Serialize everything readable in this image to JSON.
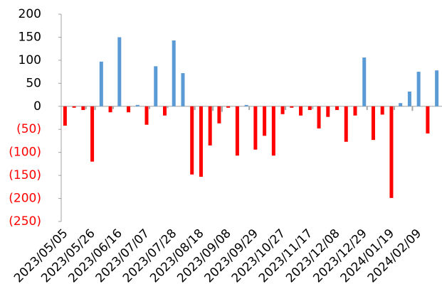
{
  "chart_data": {
    "type": "bar",
    "categories": [
      "2023/05/05",
      null,
      null,
      "2023/05/26",
      null,
      null,
      "2023/06/16",
      null,
      null,
      "2023/07/07",
      null,
      null,
      "2023/07/28",
      null,
      null,
      "2023/08/18",
      null,
      null,
      "2023/09/08",
      null,
      null,
      "2023/09/29",
      null,
      null,
      "2023/10/27",
      null,
      null,
      "2023/11/17",
      null,
      null,
      "2023/12/08",
      null,
      null,
      "2023/12/29",
      null,
      null,
      "2024/01/19",
      null,
      null,
      "2024/02/09",
      null,
      null
    ],
    "series": [
      {
        "color": "#5b9bd5",
        "negative_color": "#ff0000",
        "values": [
          -42,
          -3,
          -8,
          -120,
          97,
          -13,
          150,
          -13,
          3,
          -40,
          87,
          -20,
          143,
          72,
          -148,
          -153,
          -85,
          -37,
          -3,
          -107,
          3,
          -94,
          -64,
          -107,
          -17,
          -3,
          -20,
          -8,
          -48,
          -23,
          -8,
          -77,
          -20,
          106,
          -73,
          -18,
          -199,
          7,
          32,
          75,
          -59,
          78
        ]
      },
      {
        "color": "#a6a6a6",
        "values": [
          null,
          null,
          -6,
          -8,
          null,
          -6,
          null,
          null,
          null,
          -6,
          null,
          -4,
          null,
          null,
          -8,
          null,
          -10,
          -12,
          null,
          null,
          -8,
          null,
          null,
          null,
          -8,
          null,
          null,
          -6,
          null,
          null,
          null,
          null,
          null,
          -8,
          null,
          null,
          -8,
          null,
          -10,
          null,
          null,
          null
        ]
      }
    ],
    "ylim": [
      -250,
      200
    ],
    "yticks": [
      200,
      150,
      100,
      50,
      0,
      {
        "value": -50,
        "label": "(50)"
      },
      {
        "value": -100,
        "label": "(100)"
      },
      {
        "value": -150,
        "label": "(150)"
      },
      {
        "value": -200,
        "label": "(200)"
      },
      {
        "value": -250,
        "label": "(250)"
      }
    ],
    "negative_tick_color": "#ff0000",
    "grid": false
  }
}
